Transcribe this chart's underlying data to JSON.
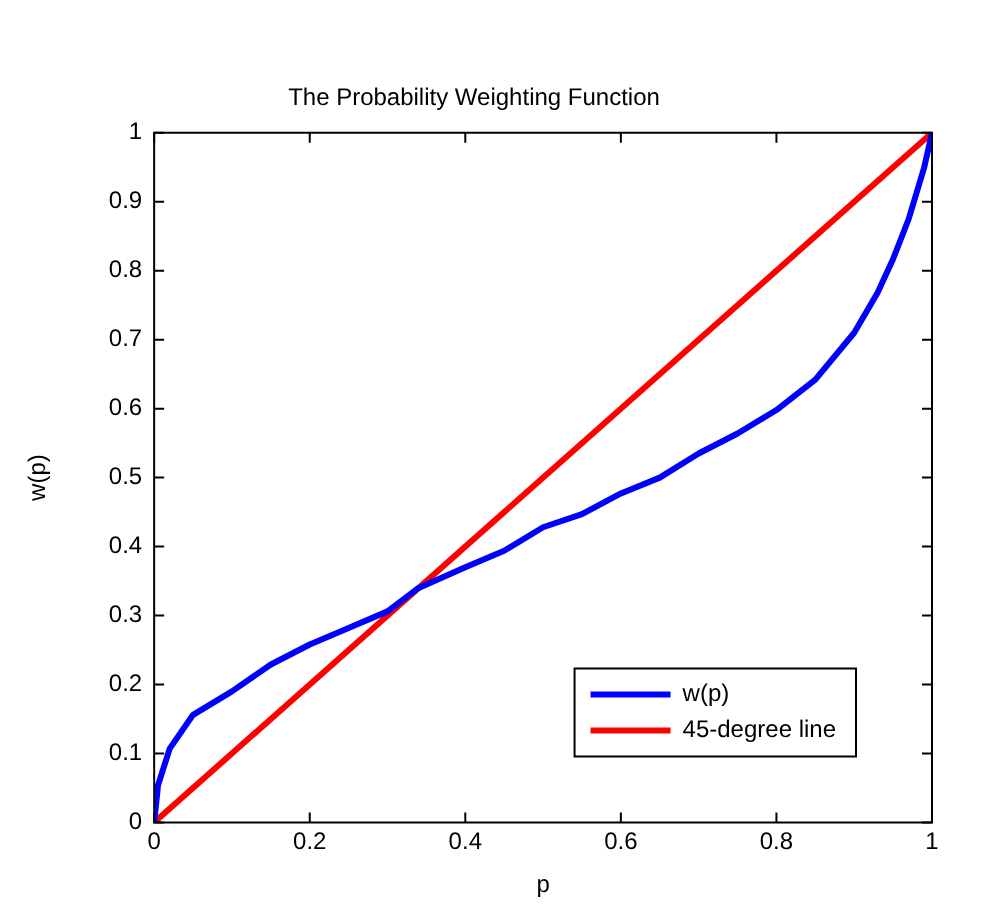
{
  "chart_data": {
    "type": "line",
    "title": "The Probability Weighting Function",
    "xlabel": "p",
    "ylabel": "w(p)",
    "xlim": [
      0,
      1
    ],
    "xticks": [
      0,
      0.2,
      0.4,
      0.6,
      0.8,
      1
    ],
    "ylim": [
      0,
      1
    ],
    "yticks": [
      0,
      0.1,
      0.2,
      0.3,
      0.4,
      0.5,
      0.6,
      0.7,
      0.8,
      0.9,
      1
    ],
    "grid": false,
    "legend": "bottom right",
    "marker": "none",
    "line_style": "solid",
    "series": [
      {
        "name": "w(p)",
        "color": "#0000ff",
        "x": [
          0,
          0.005,
          0.02,
          0.05,
          0.1,
          0.15,
          0.2,
          0.25,
          0.3,
          0.34,
          0.4,
          0.45,
          0.5,
          0.55,
          0.6,
          0.65,
          0.7,
          0.75,
          0.8,
          0.85,
          0.9,
          0.93,
          0.95,
          0.97,
          0.99,
          1
        ],
        "values": [
          0,
          0.054,
          0.107,
          0.156,
          0.19,
          0.229,
          0.258,
          0.282,
          0.306,
          0.34,
          0.37,
          0.394,
          0.428,
          0.447,
          0.477,
          0.5,
          0.535,
          0.564,
          0.598,
          0.642,
          0.71,
          0.768,
          0.817,
          0.875,
          0.95,
          1
        ]
      },
      {
        "name": "45-degree line",
        "color": "#ff0000",
        "x": [
          0,
          1
        ],
        "values": [
          0,
          1
        ]
      }
    ]
  }
}
